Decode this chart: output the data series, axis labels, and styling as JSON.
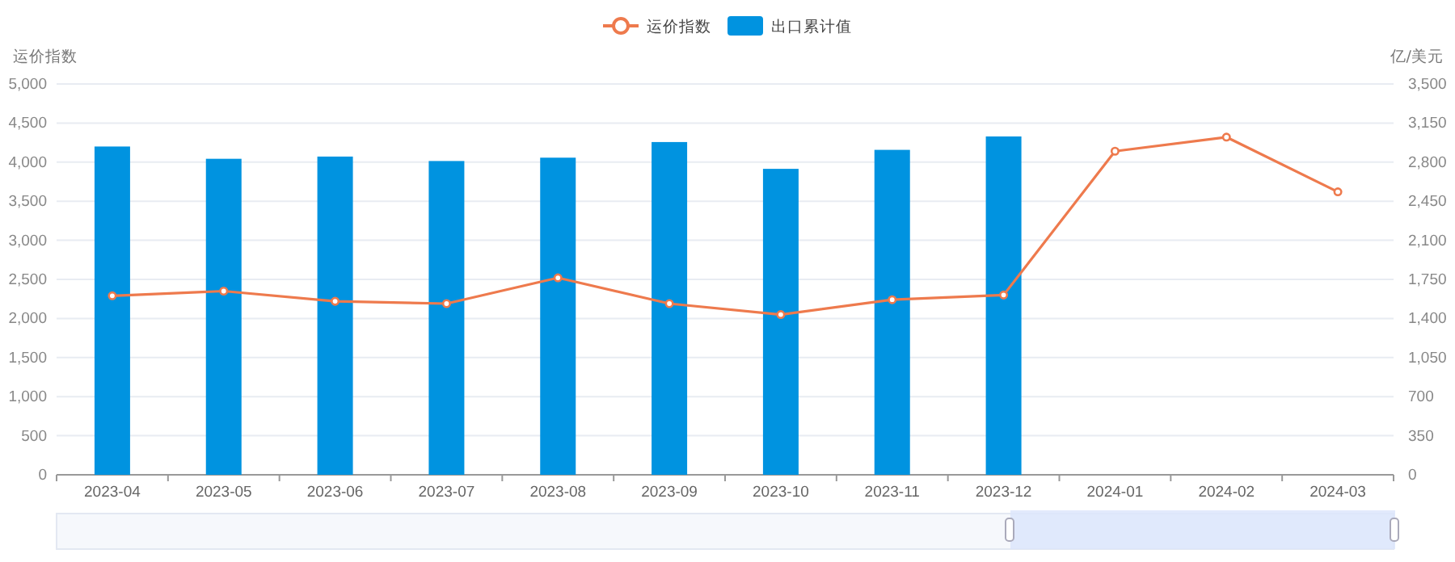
{
  "chart_data": {
    "type": "bar",
    "categories": [
      "2023-04",
      "2023-05",
      "2023-06",
      "2023-07",
      "2023-08",
      "2023-09",
      "2023-10",
      "2023-11",
      "2023-12",
      "2024-01",
      "2024-02",
      "2024-03"
    ],
    "series": [
      {
        "name": "运价指数",
        "type": "line",
        "color": "#ee7a4d",
        "values": [
          2290,
          2350,
          2220,
          2190,
          2520,
          2190,
          2050,
          2240,
          2300,
          4140,
          4320,
          3620
        ]
      },
      {
        "name": "出口累计值",
        "axis": "y2",
        "color": "#0093e0",
        "values": [
          2940,
          2830,
          2850,
          2810,
          2840,
          2980,
          2740,
          2910,
          3030,
          null,
          null,
          null
        ]
      }
    ],
    "ylabel": "运价指数",
    "y2label": "亿/美元",
    "ylim": [
      0,
      5000
    ],
    "yticks": [
      0,
      500,
      {
        "value": 1000,
        "label": "1,000"
      },
      {
        "value": 1500,
        "label": "1,500"
      },
      {
        "value": 2000,
        "label": "2,000"
      },
      {
        "value": 2500,
        "label": "2,500"
      },
      {
        "value": 3000,
        "label": "3,000"
      },
      {
        "value": 3500,
        "label": "3,500"
      },
      {
        "value": 4000,
        "label": "4,000"
      },
      {
        "value": 4500,
        "label": "4,500"
      },
      {
        "value": 5000,
        "label": "5,000"
      }
    ],
    "y2lim": [
      0,
      3500
    ],
    "y2ticks": [
      0,
      350,
      700,
      {
        "value": 1050,
        "label": "1,050"
      },
      {
        "value": 1400,
        "label": "1,400"
      },
      {
        "value": 1750,
        "label": "1,750"
      },
      {
        "value": 2100,
        "label": "2,100"
      },
      {
        "value": 2450,
        "label": "2,450"
      },
      {
        "value": 2800,
        "label": "2,800"
      },
      {
        "value": 3150,
        "label": "3,150"
      },
      {
        "value": 3500,
        "label": "3,500"
      }
    ],
    "grid": "y",
    "legend": "top",
    "marker": "circle",
    "line_style": "solid"
  }
}
